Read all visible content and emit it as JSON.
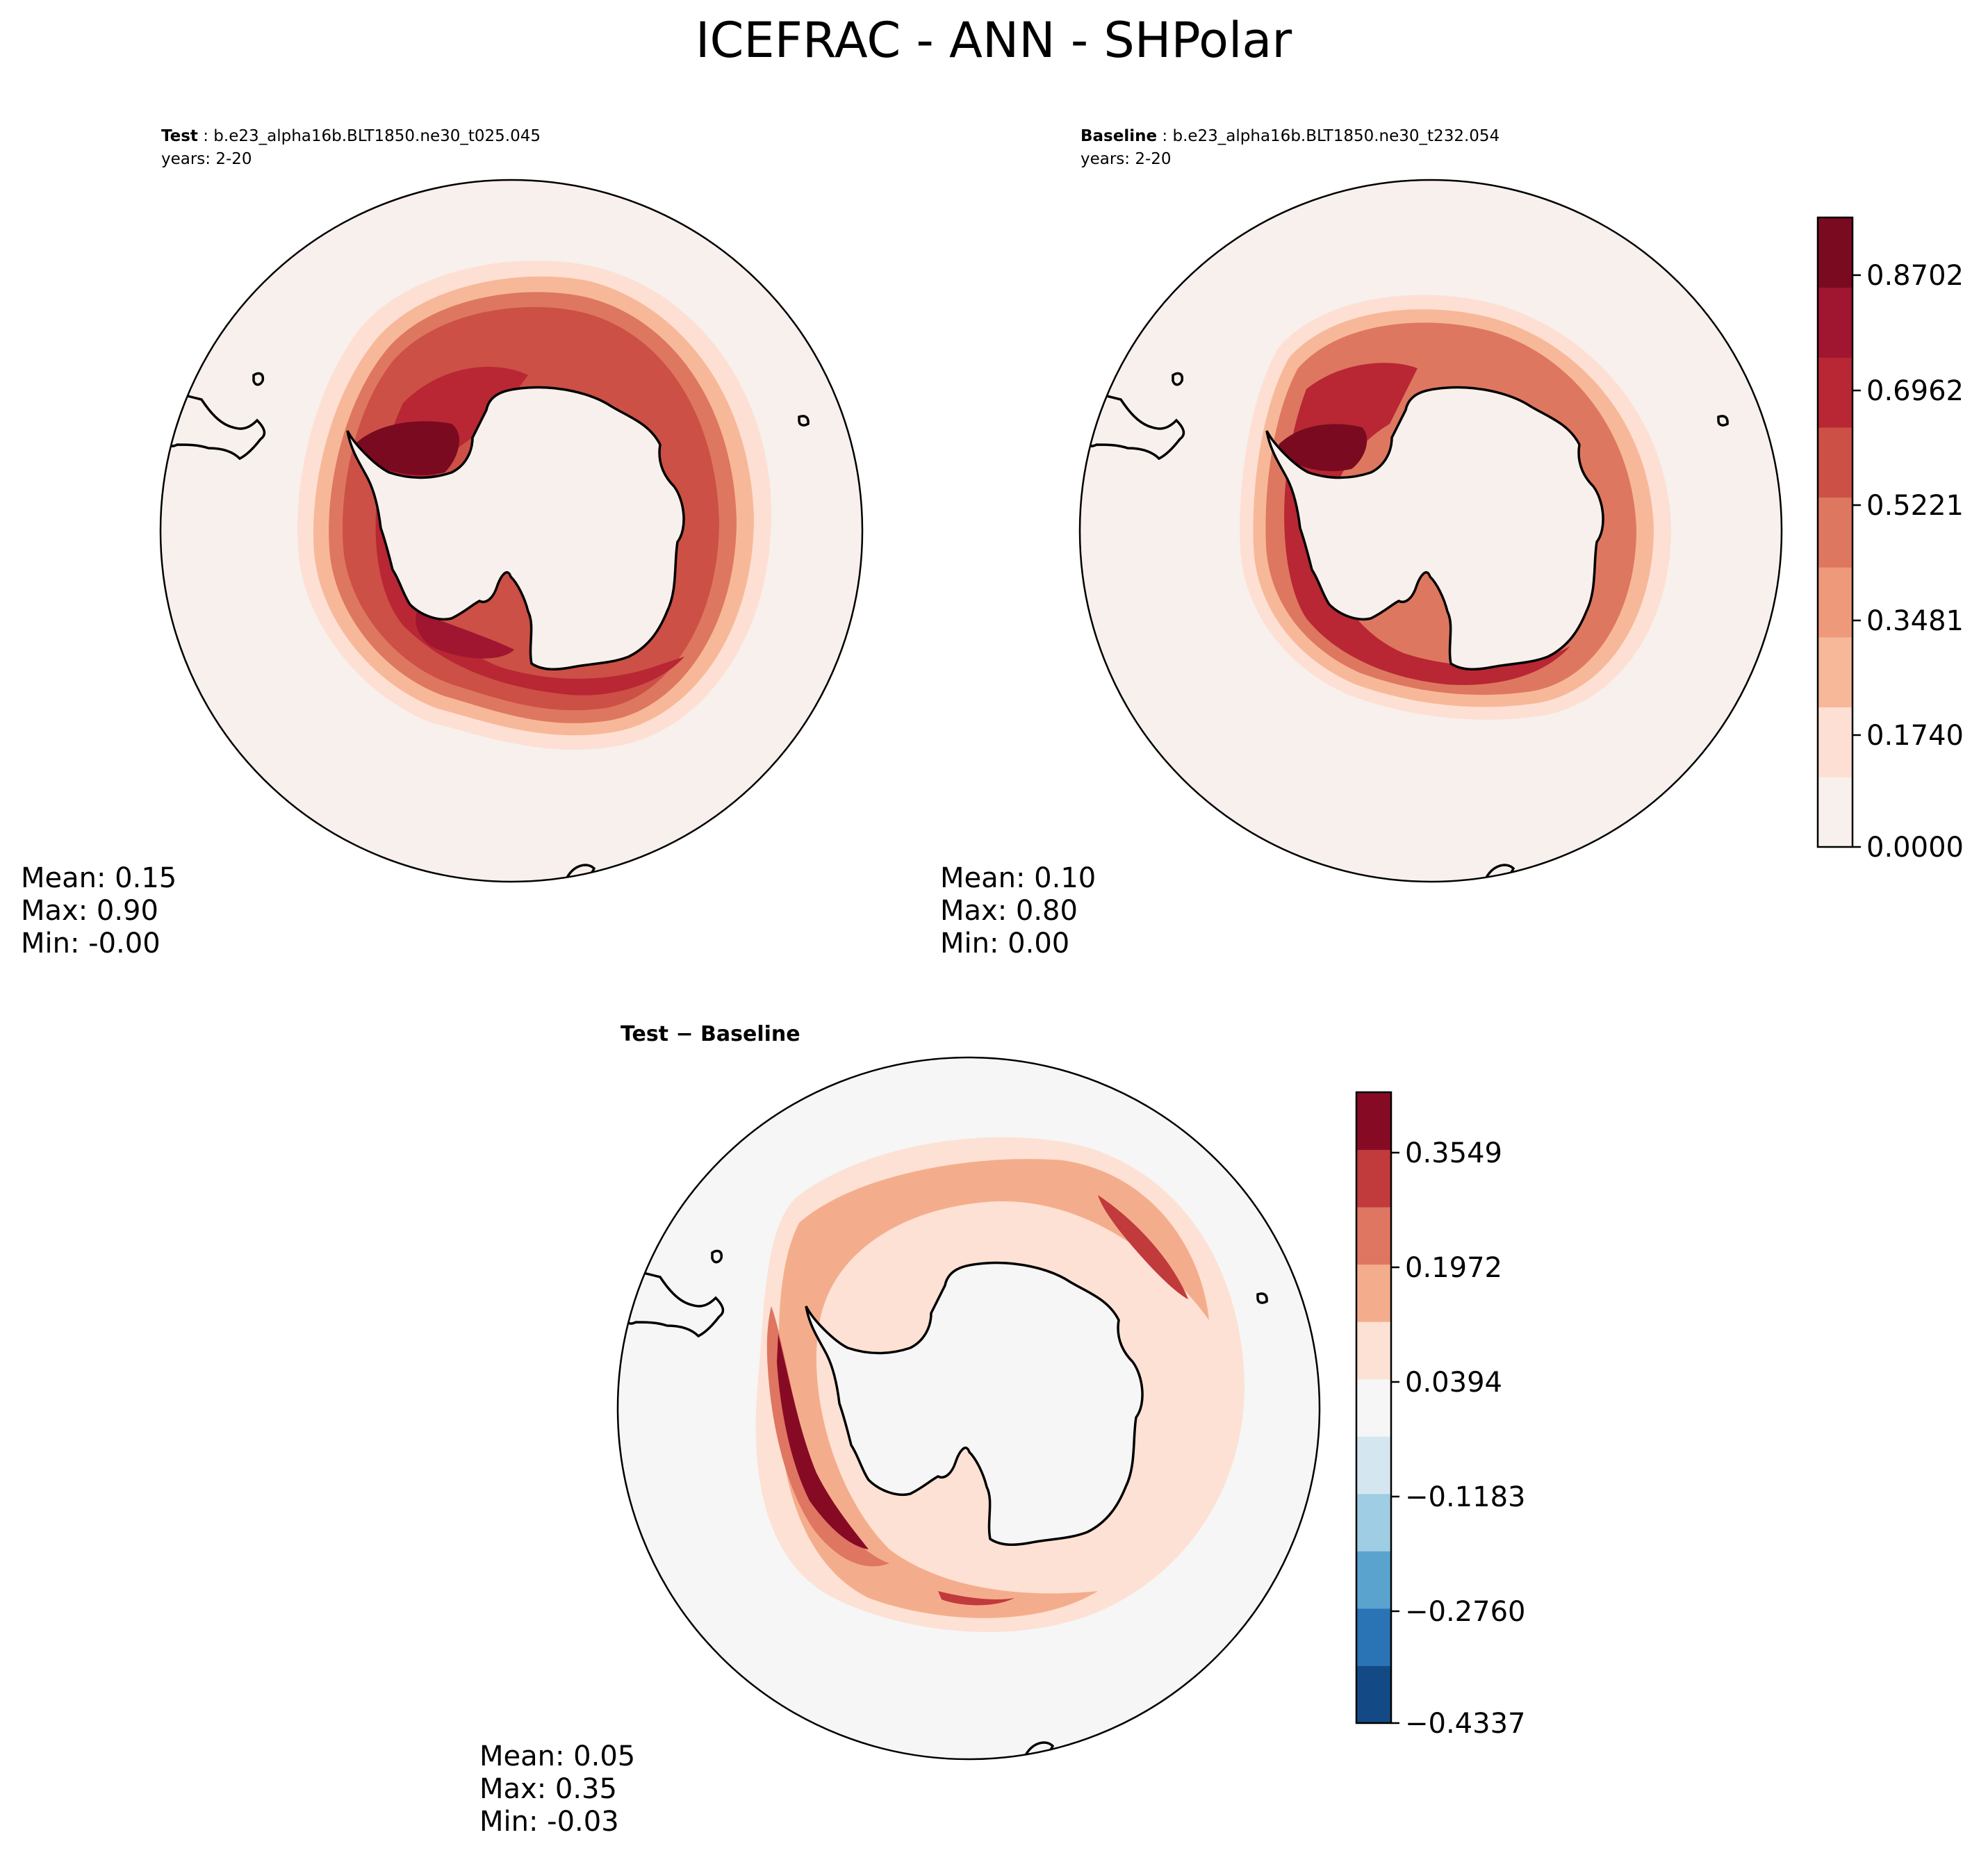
{
  "figure": {
    "title": "ICEFRAC - ANN - SHPolar"
  },
  "panels": {
    "test": {
      "label_bold": "Test",
      "label_rest": " : b.e23_alpha16b.BLT1850.ne30_t025.045",
      "years": "years: 2-20",
      "stats": {
        "mean": "Mean:  0.15",
        "max": "Max:  0.90",
        "min": "Min: -0.00"
      }
    },
    "baseline": {
      "label_bold": "Baseline",
      "label_rest": " : b.e23_alpha16b.BLT1850.ne30_t232.054",
      "years": "years: 2-20",
      "stats": {
        "mean": "Mean:  0.10",
        "max": "Max:  0.80",
        "min": "Min:  0.00"
      }
    },
    "diff": {
      "label_bold": "Test − Baseline",
      "stats": {
        "mean": "Mean:  0.05",
        "max": "Max:  0.35",
        "min": "Min: -0.03"
      }
    }
  },
  "chart_data": [
    {
      "type": "heatmap",
      "projection": "south-polar-stereographic",
      "title": "Test : b.e23_alpha16b.BLT1850.ne30_t025.045",
      "variable": "ICEFRAC",
      "season": "ANN",
      "region": "SHPolar",
      "years": "2-20",
      "stats": {
        "mean": 0.15,
        "max": 0.9,
        "min": -0.0
      }
    },
    {
      "type": "heatmap",
      "projection": "south-polar-stereographic",
      "title": "Baseline : b.e23_alpha16b.BLT1850.ne30_t232.054",
      "variable": "ICEFRAC",
      "season": "ANN",
      "region": "SHPolar",
      "years": "2-20",
      "stats": {
        "mean": 0.1,
        "max": 0.8,
        "min": 0.0
      }
    },
    {
      "type": "heatmap",
      "projection": "south-polar-stereographic",
      "title": "Test − Baseline",
      "stats": {
        "mean": 0.05,
        "max": 0.35,
        "min": -0.03
      }
    }
  ],
  "colorbars": {
    "main": {
      "ticks": [
        "0.8702",
        "0.6962",
        "0.5221",
        "0.3481",
        "0.1740",
        "0.0000"
      ],
      "colors": [
        "#f7f0ec",
        "#fde0d3",
        "#f7b89a",
        "#ee9a7a",
        "#de7760",
        "#cc5045",
        "#b82733",
        "#a01530",
        "#7a0a20"
      ]
    },
    "diff": {
      "ticks": [
        "0.3549",
        "0.1972",
        "0.0394",
        "−0.1183",
        "−0.2760",
        "−0.4337"
      ],
      "colors": [
        "#134a86",
        "#2a73b4",
        "#5ba3cf",
        "#9fcde3",
        "#d4e7f1",
        "#f5f6f5",
        "#fde1d4",
        "#f4ad8c",
        "#de7661",
        "#c13a3c",
        "#870a25"
      ]
    }
  },
  "colors": {
    "ocean_bg": "#f7f0ec",
    "diff_bg": "#f5f6f5",
    "coast": "#000000"
  }
}
